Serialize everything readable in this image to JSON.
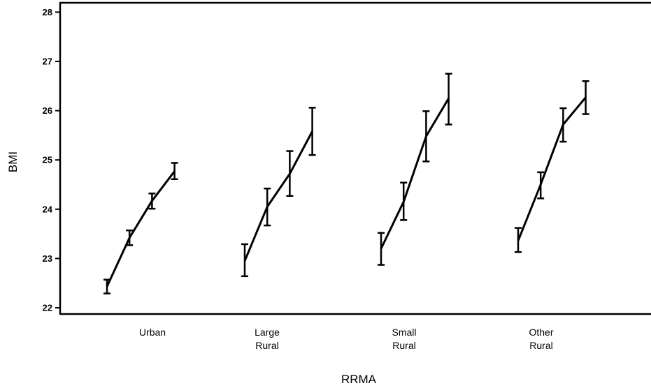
{
  "chart_data": {
    "type": "line",
    "title": "",
    "xlabel": "RRMA",
    "ylabel": "BMI",
    "ylim": [
      22,
      28
    ],
    "yticks": [
      22,
      23,
      24,
      25,
      26,
      27,
      28
    ],
    "grid": false,
    "legend": "none",
    "categories": [
      "Urban",
      "Large Rural",
      "Small Rural",
      "Other Rural"
    ],
    "category_lines": [
      [
        "Urban"
      ],
      [
        "Large",
        "Rural"
      ],
      [
        "Small",
        "Rural"
      ],
      [
        "Other",
        "Rural"
      ]
    ],
    "series": [
      {
        "category": "Urban",
        "values": [
          22.43,
          23.42,
          24.17,
          24.77
        ],
        "lower": [
          22.29,
          23.27,
          24.01,
          24.61
        ],
        "upper": [
          22.57,
          23.57,
          24.32,
          24.94
        ]
      },
      {
        "category": "Large Rural",
        "values": [
          22.95,
          24.05,
          24.72,
          25.58
        ],
        "lower": [
          22.64,
          23.67,
          24.27,
          25.1
        ],
        "upper": [
          23.29,
          24.42,
          25.18,
          26.06
        ]
      },
      {
        "category": "Small Rural",
        "values": [
          23.2,
          24.15,
          25.48,
          26.25
        ],
        "lower": [
          22.87,
          23.78,
          24.97,
          25.72
        ],
        "upper": [
          23.52,
          24.54,
          25.99,
          26.75
        ]
      },
      {
        "category": "Other Rural",
        "values": [
          23.36,
          24.5,
          25.72,
          26.27
        ],
        "lower": [
          23.13,
          24.22,
          25.37,
          25.93
        ],
        "upper": [
          23.62,
          24.75,
          26.05,
          26.6
        ]
      }
    ]
  }
}
